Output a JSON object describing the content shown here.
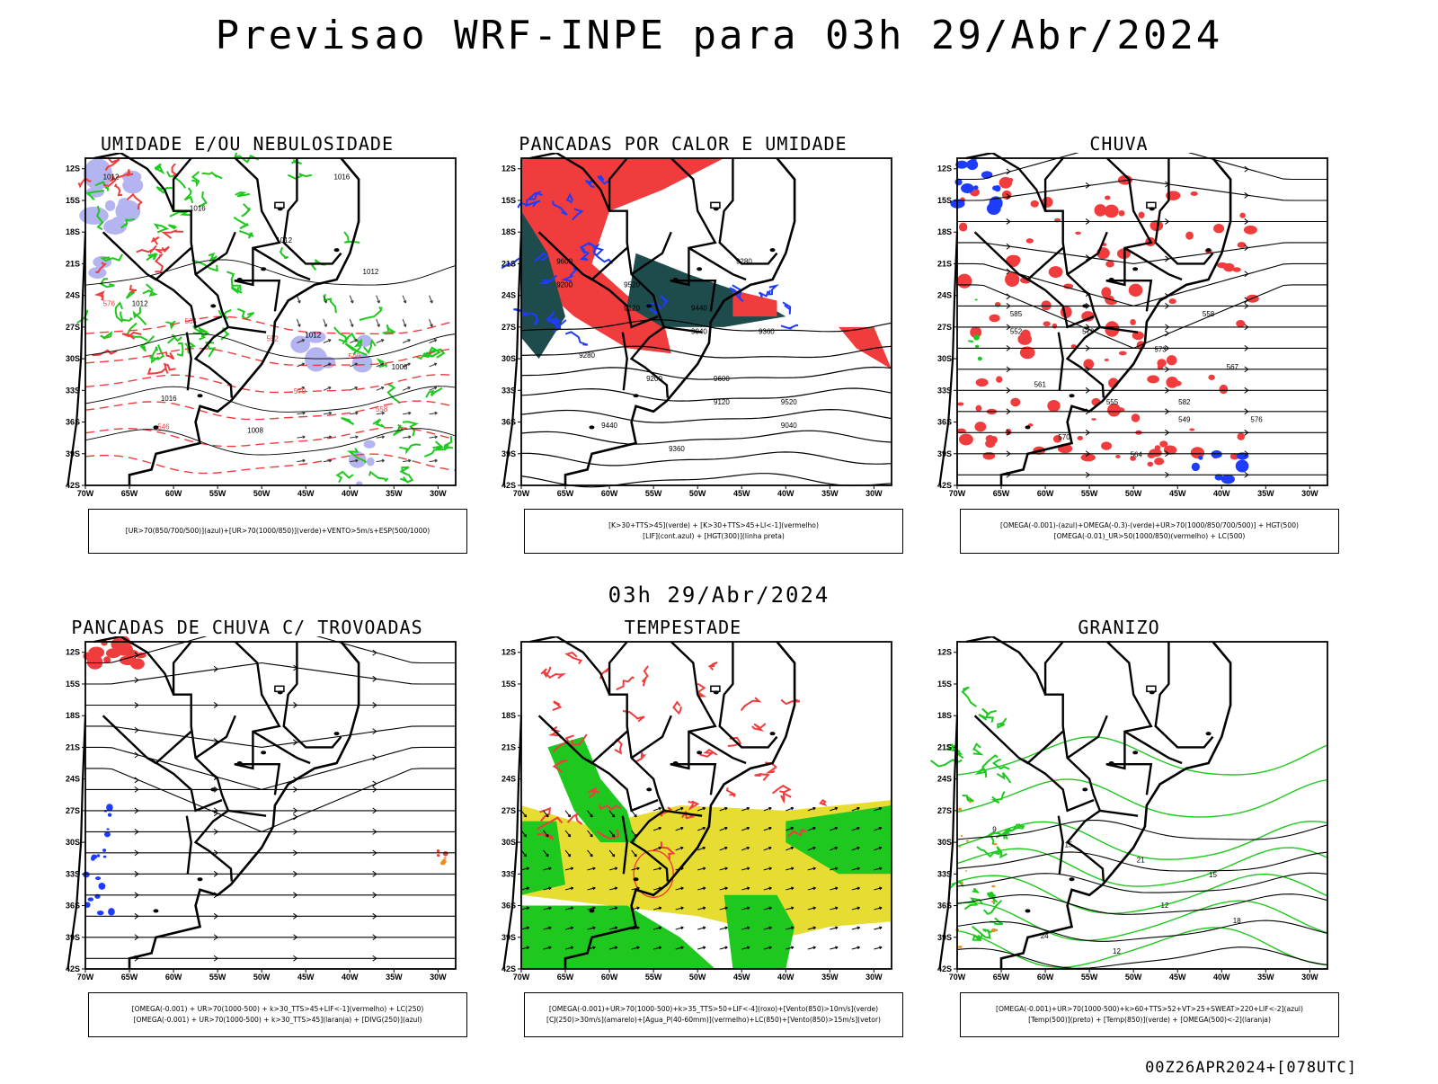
{
  "header": {
    "main_title": "Previsao WRF-INPE  para 03h 29/Abr/2024",
    "mid_title": "03h 29/Abr/2024",
    "footer_code": "00Z26APR2024+[078UTC]"
  },
  "axes": {
    "lat_labels": [
      "12S",
      "15S",
      "18S",
      "21S",
      "24S",
      "27S",
      "30S",
      "33S",
      "36S",
      "39S",
      "42S"
    ],
    "lon_labels": [
      "70W",
      "65W",
      "60W",
      "55W",
      "50W",
      "45W",
      "40W",
      "35W",
      "30W"
    ]
  },
  "panels": [
    {
      "id": "umidade",
      "title": "UMIDADE E/OU NEBULOSIDADE",
      "legend": [
        "[UR>70(850/700/500)](azul)+[UR>70(1000/850)](verde)+VENTO>5m/s+ESP(500/1000)"
      ],
      "contour_labels": [
        "1012",
        "1012",
        "1016",
        "1008",
        "1012",
        "1016",
        "1012",
        "1008",
        "1012",
        "1016"
      ],
      "red_labels": [
        "576",
        "570",
        "564",
        "558",
        "552",
        "546",
        "540"
      ]
    },
    {
      "id": "pancadas-calor",
      "title": "PANCADAS POR CALOR E UMIDADE",
      "legend": [
        "[K>30+TTS>45](verde) + [K>30+TTS>45+LI<-1](vermelho)",
        "[LIF](cont.azul) + [HGT(300)](linha preta)"
      ],
      "contour_labels": [
        "9600",
        "9600",
        "9520",
        "9520",
        "9440",
        "9440",
        "9360",
        "9360",
        "9280",
        "9280",
        "9200",
        "9200",
        "9120",
        "9120",
        "9040",
        "9040"
      ]
    },
    {
      "id": "chuva",
      "title": "CHUVA",
      "legend": [
        "[OMEGA(-0.001)-(azul)+OMEGA(-0.3)-(verde)+UR>70(1000/850/700/500)] + HGT(500)",
        "[OMEGA(-0.01)_UR>50(1000/850)(vermelho) + LC(500)"
      ],
      "contour_labels": [
        "585",
        "582",
        "579",
        "576",
        "573",
        "570",
        "567",
        "564",
        "561",
        "558",
        "555",
        "552",
        "549"
      ]
    },
    {
      "id": "trovoadas",
      "title": "PANCADAS DE CHUVA C/ TROVOADAS",
      "legend": [
        "[OMEGA(-0.001) + UR>70(1000-500) + k>30_TTS>45+LIF<-1](vermelho) + LC(250)",
        "[OMEGA(-0.001) + UR>70(1000-500) + k>30_TTS>45](laranja) + [DIVG(250)](azul)"
      ],
      "contour_labels": []
    },
    {
      "id": "tempestade",
      "title": "TEMPESTADE",
      "legend": [
        "[OMEGA(-0.001)+UR>70(1000-500)+k>35_TTS>50+LIF<-4](roxo)+[Vento(850)>10m/s](verde)",
        "[CJ(250)>30m/s](amarelo)+[Agua_P(40-60mm)](vermelho)+LC(850)+[Vento(850)>15m/s](vetor)"
      ],
      "contour_labels": []
    },
    {
      "id": "granizo",
      "title": "GRANIZO",
      "legend": [
        "[OMEGA(-0.001)+UR>70(1000-500)+k>60+TTS>52+VT>25+SWEAT>220+LIF<-2](azul)",
        "[Temp(500)](preto) + [Temp(850)](verde) + [OMEGA(500)<-2](laranja)"
      ],
      "contour_labels": [
        "9",
        "12",
        "15",
        "18",
        "21",
        "24",
        "15",
        "12"
      ]
    }
  ],
  "colors": {
    "red": "#f03c3c",
    "green": "#1ec81e",
    "blue": "#1e3cff",
    "lavender": "#b4b4f0",
    "darkteal": "#1e4b4b",
    "yellow": "#e6dc32",
    "orange": "#f08c1e"
  }
}
